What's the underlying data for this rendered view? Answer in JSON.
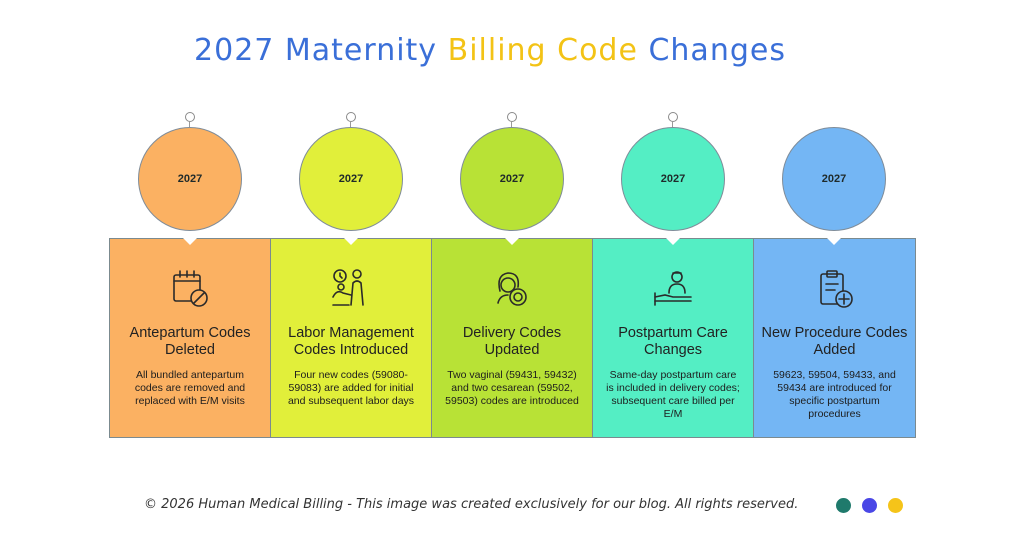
{
  "title": {
    "part1": "2027 Maternity ",
    "part2": "Billing Code",
    "part3": " Changes"
  },
  "colors": {
    "title_blue": "#3a6fd8",
    "title_yellow": "#f3c316",
    "dots": [
      "#1f7a6c",
      "#4a47e6",
      "#f5c419"
    ]
  },
  "steps": [
    {
      "year": "2027",
      "icon": "calendar-cancel-icon",
      "heading": "Antepartum Codes Deleted",
      "description": "All bundled antepartum codes are removed and replaced with E/M visits",
      "color": "#fbb162"
    },
    {
      "year": "2027",
      "icon": "clock-person-icon",
      "heading": "Labor Management Codes Introduced",
      "description": "Four new codes (59080-59083) are added for initial and subsequent labor days",
      "color": "#e1ef3a"
    },
    {
      "year": "2027",
      "icon": "mother-baby-icon",
      "heading": "Delivery Codes Updated",
      "description": "Two vaginal (59431, 59432) and two cesarean (59502, 59503) codes are introduced",
      "color": "#b8e236"
    },
    {
      "year": "2027",
      "icon": "patient-bed-icon",
      "heading": "Postpartum Care Changes",
      "description": "Same-day postpartum care is included in delivery codes; subsequent care billed per E/M",
      "color": "#54eec4"
    },
    {
      "year": "2027",
      "icon": "clipboard-add-icon",
      "heading": "New Procedure Codes Added",
      "description": "59623, 59504, 59433, and 59434 are introduced for specific postpartum procedures",
      "color": "#74b6f4"
    }
  ],
  "footer": {
    "text": "© 2026 Human Medical Billing - This image was created exclusively for our blog. All rights reserved."
  }
}
